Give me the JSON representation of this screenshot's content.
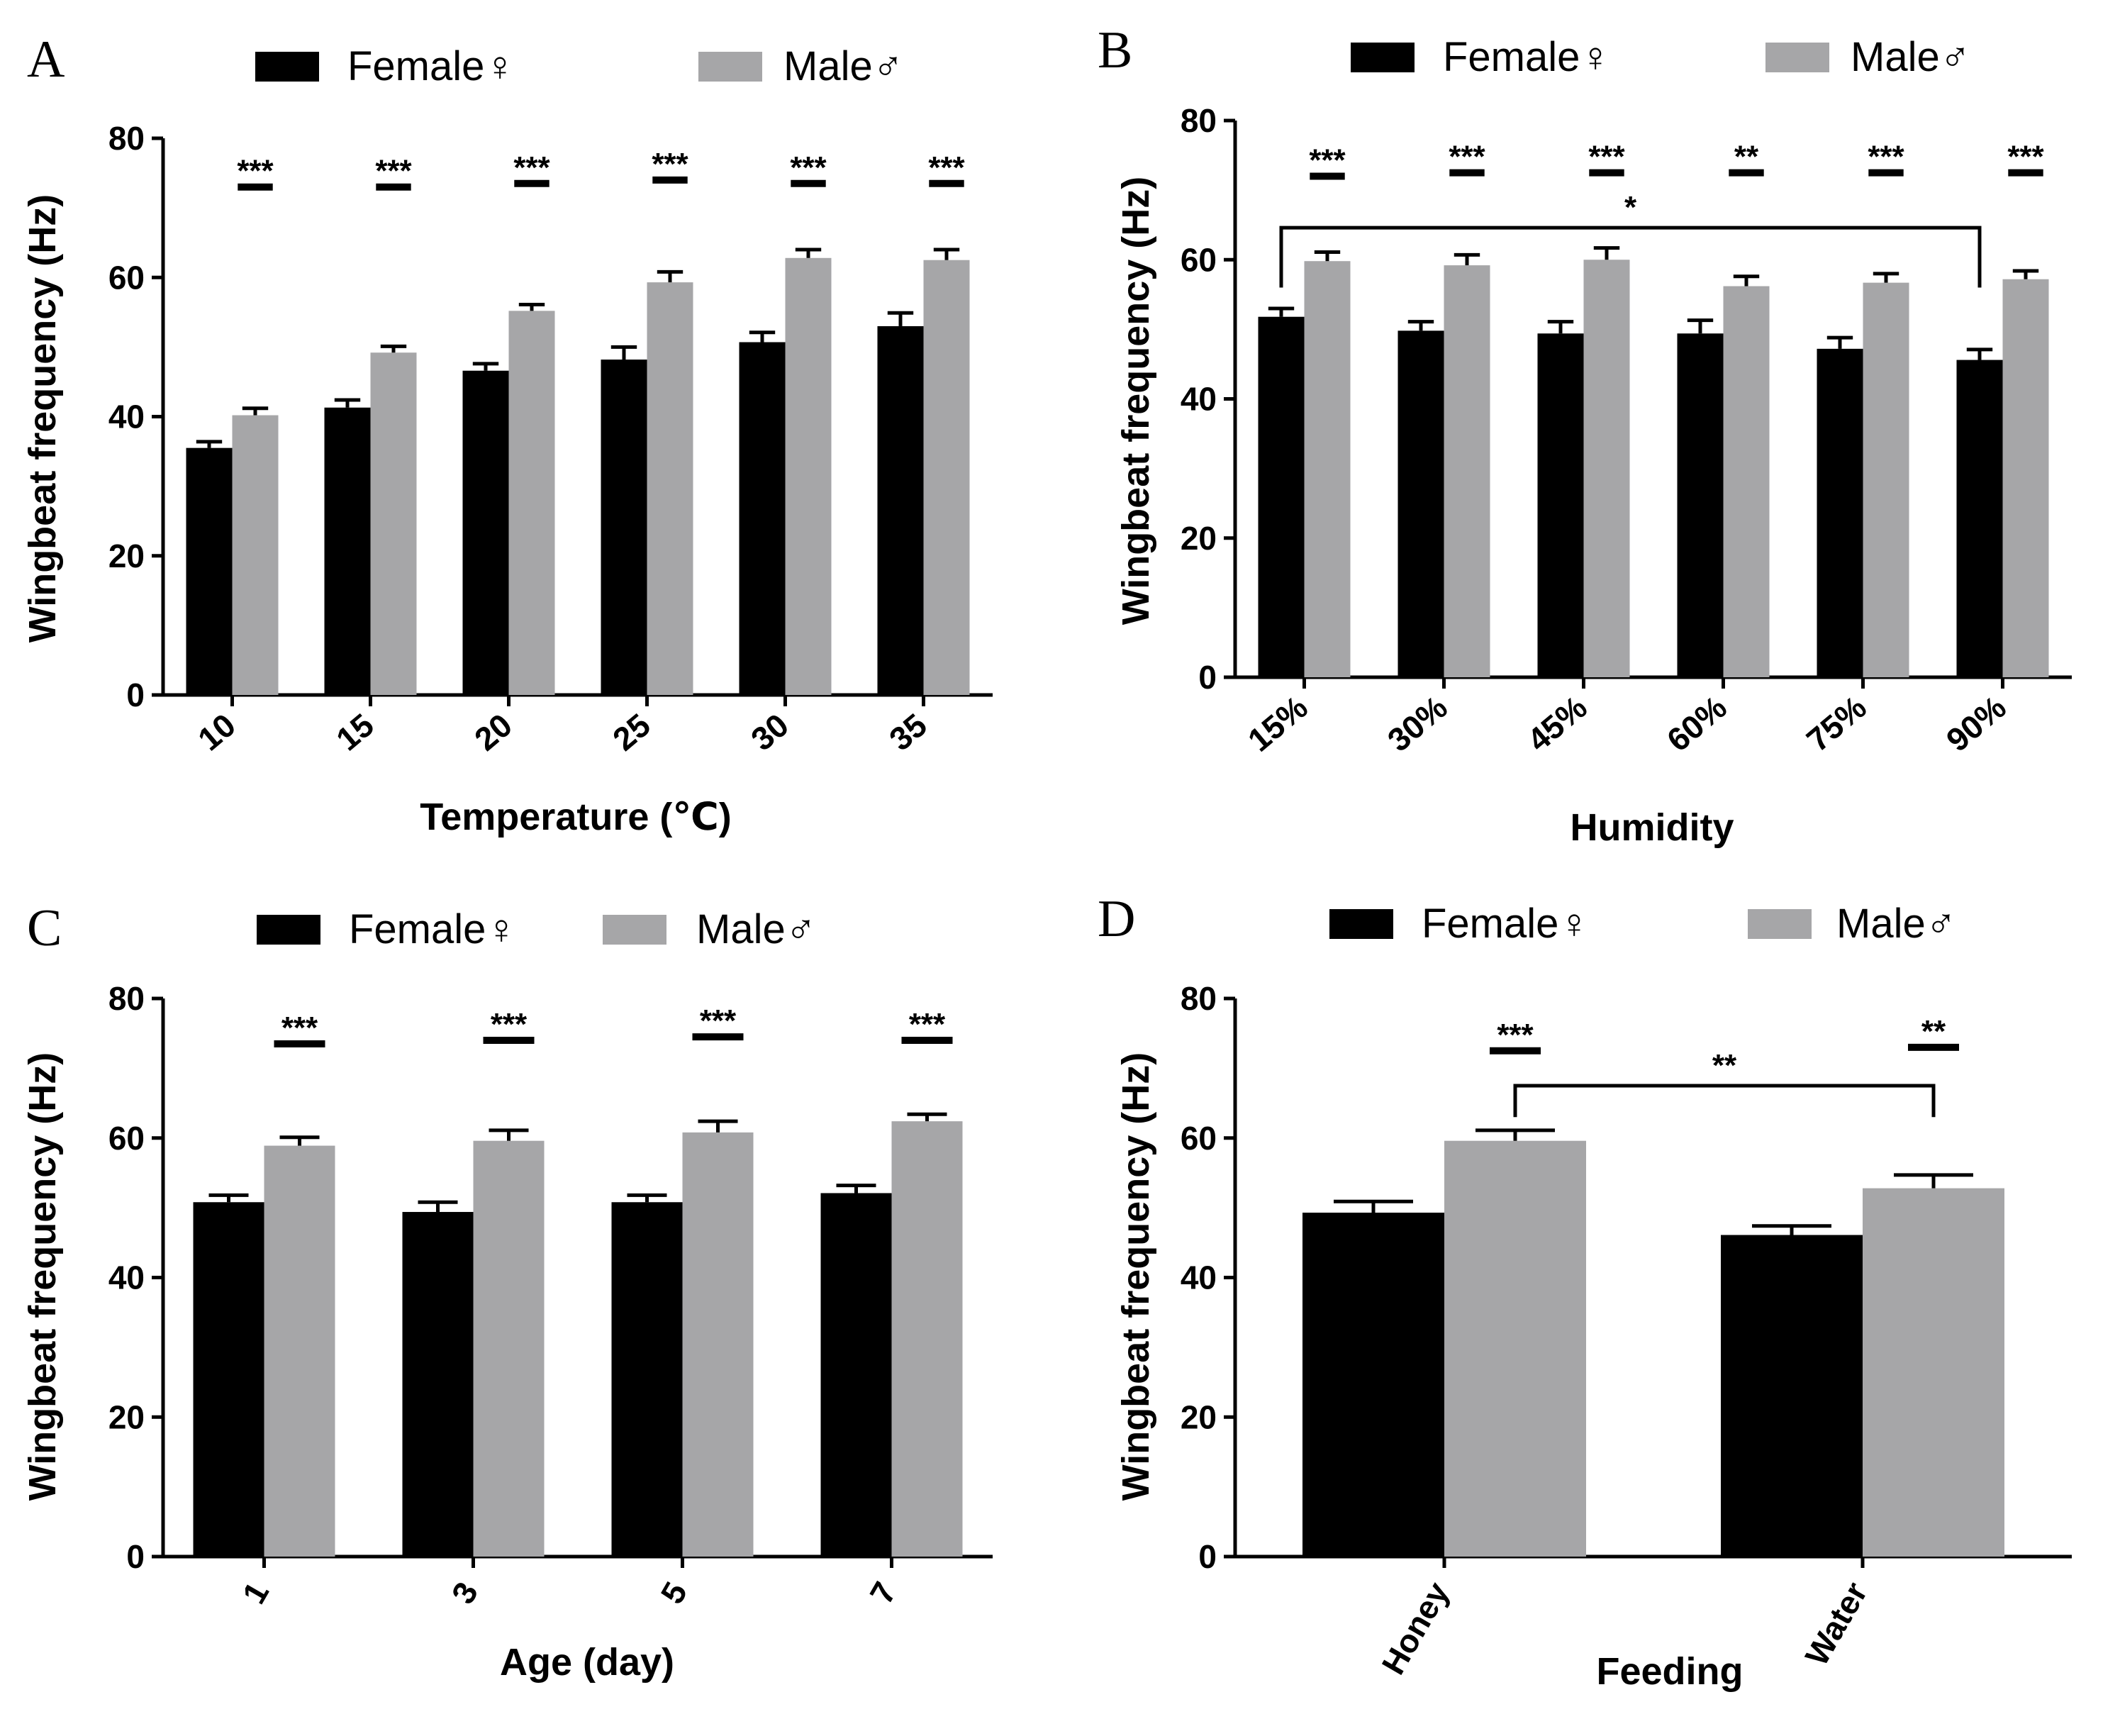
{
  "figure": {
    "colors": {
      "female": "#000000",
      "male": "#a6a6a8",
      "axis": "#000000"
    },
    "legend": {
      "female_label": "Female♀",
      "male_label": "Male♂"
    }
  },
  "chart_data": [
    {
      "panel": "A",
      "type": "bar",
      "xlabel": "Temperature (℃)",
      "ylabel": "Wingbeat frequency (Hz)",
      "ylim": [
        0,
        80
      ],
      "yticks": [
        "0",
        "20",
        "40",
        "60",
        "80"
      ],
      "categories": [
        "10",
        "15",
        "20",
        "25",
        "30",
        "35"
      ],
      "series": [
        {
          "name": "Female♀",
          "values": [
            35.5,
            41.3,
            46.6,
            48.2,
            50.7,
            53.0
          ],
          "errors": [
            0.9,
            1.1,
            1.0,
            1.8,
            1.4,
            1.9
          ]
        },
        {
          "name": "Male♂",
          "values": [
            40.2,
            49.2,
            55.2,
            59.3,
            62.8,
            62.5
          ],
          "errors": [
            1.0,
            0.9,
            0.9,
            1.5,
            1.2,
            1.5
          ]
        }
      ],
      "significance": [
        {
          "label": "***",
          "y": 73
        },
        {
          "label": "***",
          "y": 73
        },
        {
          "label": "***",
          "y": 73.5
        },
        {
          "label": "***",
          "y": 74
        },
        {
          "label": "***",
          "y": 73.5
        },
        {
          "label": "***",
          "y": 73.5
        }
      ],
      "brackets": []
    },
    {
      "panel": "B",
      "type": "bar",
      "xlabel": "Humidity",
      "ylabel": "Wingbeat frequency (Hz)",
      "ylim": [
        0,
        80
      ],
      "yticks": [
        "0",
        "20",
        "40",
        "60",
        "80"
      ],
      "categories": [
        "15%",
        "30%",
        "45%",
        "60%",
        "75%",
        "90%"
      ],
      "series": [
        {
          "name": "Female♀",
          "values": [
            51.8,
            49.8,
            49.4,
            49.4,
            47.2,
            45.6
          ],
          "errors": [
            1.2,
            1.3,
            1.7,
            1.9,
            1.6,
            1.5
          ]
        },
        {
          "name": "Male♂",
          "values": [
            59.8,
            59.2,
            60.0,
            56.2,
            56.7,
            57.2
          ],
          "errors": [
            1.3,
            1.5,
            1.7,
            1.4,
            1.3,
            1.2
          ]
        }
      ],
      "significance": [
        {
          "label": "***",
          "y": 72
        },
        {
          "label": "***",
          "y": 72.5
        },
        {
          "label": "***",
          "y": 72.5
        },
        {
          "label": "**",
          "y": 72.5
        },
        {
          "label": "***",
          "y": 72.5
        },
        {
          "label": "***",
          "y": 72.5
        }
      ],
      "brackets": [
        {
          "label": "*",
          "from_category": 0,
          "to_category": 5,
          "y": 64.6,
          "drop_to": 56
        }
      ]
    },
    {
      "panel": "C",
      "type": "bar",
      "xlabel": "Age (day)",
      "ylabel": "Wingbeat frequency (Hz)",
      "ylim": [
        0,
        80
      ],
      "yticks": [
        "0",
        "20",
        "40",
        "60",
        "80"
      ],
      "categories": [
        "1",
        "3",
        "5",
        "7"
      ],
      "series": [
        {
          "name": "Female♀",
          "values": [
            50.8,
            49.4,
            50.8,
            52.1
          ],
          "errors": [
            1.0,
            1.4,
            1.0,
            1.1
          ]
        },
        {
          "name": "Male♂",
          "values": [
            58.9,
            59.6,
            60.8,
            62.4
          ],
          "errors": [
            1.2,
            1.5,
            1.6,
            1.0
          ]
        }
      ],
      "significance": [
        {
          "label": "***",
          "y": 73.5
        },
        {
          "label": "***",
          "y": 74
        },
        {
          "label": "***",
          "y": 74.5
        },
        {
          "label": "***",
          "y": 74
        }
      ],
      "brackets": []
    },
    {
      "panel": "D",
      "type": "bar",
      "xlabel": "Feeding",
      "ylabel": "Wingbeat frequency (Hz)",
      "ylim": [
        0,
        80
      ],
      "yticks": [
        "0",
        "20",
        "40",
        "60",
        "80"
      ],
      "categories": [
        "Honey",
        "Water"
      ],
      "series": [
        {
          "name": "Female♀",
          "values": [
            49.3,
            46.1
          ],
          "errors": [
            1.6,
            1.3
          ]
        },
        {
          "name": "Male♂",
          "values": [
            59.6,
            52.8
          ],
          "errors": [
            1.5,
            1.9
          ]
        }
      ],
      "significance": [
        {
          "label": "***",
          "y": 72.5
        },
        {
          "label": "**",
          "y": 73
        }
      ],
      "brackets": [
        {
          "label": "**",
          "from_category": 0,
          "to_category": 1,
          "y": 67.5,
          "drop_to": 63
        }
      ]
    }
  ]
}
